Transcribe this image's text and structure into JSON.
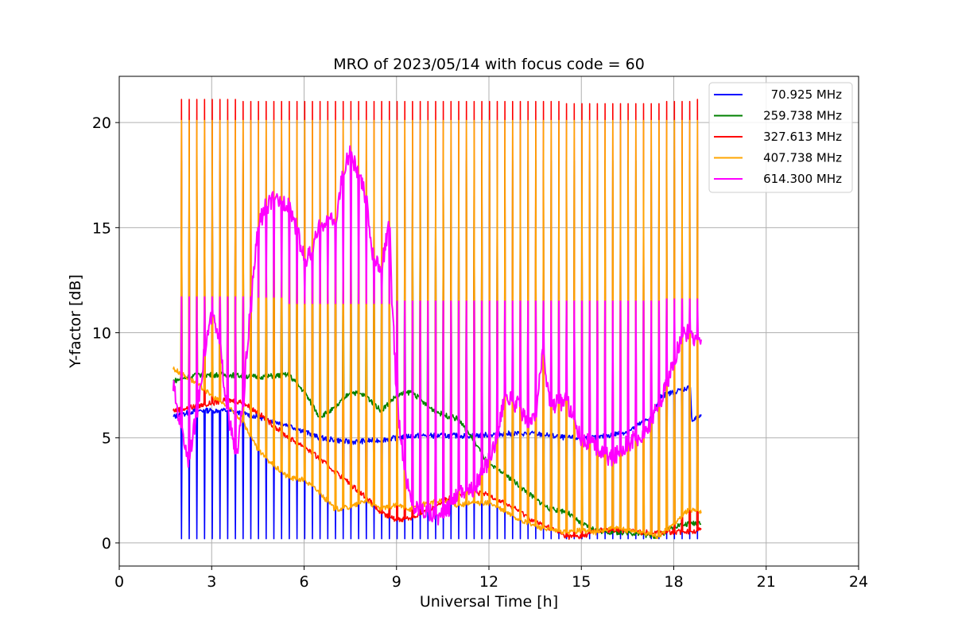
{
  "chart_data": {
    "type": "line",
    "title": "MRO of 2023/05/14 with focus code = 60",
    "xlabel": "Universal Time [h]",
    "ylabel": "Y-factor [dB]",
    "xlim": [
      0,
      24
    ],
    "ylim": [
      -1.1,
      22.2
    ],
    "x_ticks": [
      0,
      3,
      6,
      9,
      12,
      15,
      18,
      21,
      24
    ],
    "y_ticks": [
      0,
      5,
      10,
      15,
      20
    ],
    "grid": true,
    "legend": "top-right",
    "calibration_period_h": 0.25,
    "series": [
      {
        "name": " 70.925 MHz",
        "color": "#0000ff",
        "baseline": {
          "x": [
            1.75,
            2.5,
            3.5,
            4.5,
            5.5,
            6.5,
            7.5,
            8.5,
            9.5,
            10.5,
            11.5,
            12.5,
            13.5,
            14.5,
            15.5,
            16.5,
            17.3,
            17.6,
            18.5,
            18.6,
            18.9
          ],
          "y": [
            6.0,
            6.3,
            6.3,
            6.0,
            5.6,
            5.0,
            4.8,
            4.9,
            5.1,
            5.1,
            5.1,
            5.2,
            5.2,
            5.0,
            5.0,
            5.3,
            6.0,
            7.0,
            7.4,
            5.8,
            6.1
          ]
        },
        "spikes": {
          "start": 2.0,
          "end": 18.75,
          "values": [
            0.2
          ]
        }
      },
      {
        "name": "259.738 MHz",
        "color": "#008000",
        "baseline": {
          "x": [
            1.75,
            2.5,
            3.5,
            4.5,
            5.5,
            6.0,
            6.5,
            7.0,
            7.5,
            8.0,
            8.5,
            9.0,
            9.5,
            10.0,
            10.5,
            11.0,
            11.5,
            12.0,
            12.5,
            13.0,
            13.5,
            14.0,
            14.5,
            15.0,
            15.5,
            16.0,
            16.5,
            17.0,
            17.5,
            18.0,
            18.9
          ],
          "y": [
            7.7,
            8.0,
            8.0,
            7.9,
            8.0,
            7.2,
            6.0,
            6.4,
            7.2,
            7.0,
            6.3,
            7.0,
            7.2,
            6.5,
            6.1,
            5.9,
            4.9,
            3.7,
            3.3,
            2.7,
            2.1,
            1.6,
            1.5,
            0.9,
            0.6,
            0.5,
            0.5,
            0.4,
            0.3,
            0.8,
            1.0
          ]
        },
        "spikes": {
          "start": 2.0,
          "end": 18.75,
          "values": [
            18.2
          ]
        }
      },
      {
        "name": "327.613 MHz",
        "color": "#ff0000",
        "baseline": {
          "x": [
            1.75,
            2.5,
            3.5,
            4.0,
            4.5,
            5.0,
            5.5,
            6.0,
            6.5,
            7.0,
            7.5,
            8.0,
            8.5,
            9.0,
            9.5,
            10.0,
            10.5,
            11.0,
            11.5,
            12.0,
            12.5,
            13.0,
            13.5,
            14.0,
            14.5,
            15.0,
            15.5,
            16.0,
            16.5,
            17.0,
            17.5,
            18.0,
            18.9
          ],
          "y": [
            6.3,
            6.5,
            6.8,
            6.7,
            6.2,
            5.6,
            5.0,
            4.6,
            4.0,
            3.4,
            2.8,
            2.2,
            1.4,
            1.1,
            1.2,
            1.5,
            2.0,
            2.3,
            2.4,
            2.3,
            1.9,
            1.5,
            1.0,
            0.7,
            0.3,
            0.3,
            0.6,
            0.6,
            0.6,
            0.5,
            0.5,
            0.5,
            0.6
          ]
        },
        "spikes": {
          "start": 2.0,
          "end": 18.75,
          "values": [
            21.1,
            21.1,
            21.1,
            21.1,
            21.1,
            21.1,
            21.1,
            21.1,
            21.0,
            21.0,
            21.0,
            21.0,
            21.0,
            21.0,
            21.0,
            21.0,
            21.0,
            21.0,
            21.0,
            21.0,
            21.0,
            21.0,
            21.0,
            21.0,
            21.0,
            21.0,
            21.0,
            21.0,
            21.0,
            21.0,
            21.0,
            21.0,
            21.0,
            21.0,
            21.0,
            21.0,
            21.0,
            21.0,
            21.0,
            21.0,
            21.0,
            21.0,
            21.0,
            21.0,
            21.0,
            21.0,
            21.0,
            21.0,
            21.0,
            21.0,
            20.9,
            20.9,
            20.9,
            20.9,
            20.9,
            20.9,
            20.9,
            20.9,
            20.9,
            20.9,
            20.9,
            20.9,
            20.9,
            21.0,
            21.0,
            21.0,
            21.0,
            21.1
          ]
        }
      },
      {
        "name": "407.738 MHz",
        "color": "#ffa500",
        "baseline": {
          "x": [
            1.75,
            2.5,
            3.0,
            3.5,
            4.0,
            4.5,
            5.0,
            5.5,
            6.0,
            6.5,
            7.0,
            7.5,
            8.0,
            8.5,
            9.0,
            9.5,
            10.0,
            10.5,
            11.0,
            11.5,
            12.0,
            12.5,
            13.0,
            13.5,
            14.0,
            14.5,
            15.0,
            15.5,
            16.0,
            16.5,
            17.0,
            17.5,
            18.0,
            18.5,
            18.9
          ],
          "y": [
            8.3,
            7.6,
            7.0,
            6.5,
            5.8,
            4.4,
            3.7,
            3.1,
            3.0,
            2.4,
            1.6,
            1.7,
            2.0,
            1.6,
            1.8,
            1.6,
            1.9,
            2.0,
            1.8,
            1.9,
            1.9,
            1.5,
            1.1,
            0.8,
            0.6,
            0.5,
            0.6,
            0.5,
            0.7,
            0.6,
            0.5,
            0.3,
            0.9,
            1.6,
            1.5
          ]
        },
        "spikes": {
          "start": 2.0,
          "end": 18.75,
          "values": [
            20.1
          ]
        }
      },
      {
        "name": "614.300 MHz",
        "color": "#ff00ff",
        "baseline": {
          "x": [
            1.75,
            2.0,
            2.25,
            2.5,
            2.8,
            3.0,
            3.25,
            3.5,
            3.8,
            4.0,
            4.25,
            4.5,
            4.75,
            5.0,
            5.5,
            5.75,
            6.0,
            6.25,
            6.5,
            6.75,
            7.0,
            7.25,
            7.5,
            7.75,
            8.0,
            8.25,
            8.5,
            8.75,
            9.0,
            9.25,
            9.5,
            10.0,
            10.5,
            11.0,
            11.5,
            12.0,
            12.25,
            12.5,
            13.0,
            13.25,
            13.5,
            13.75,
            14.0,
            14.5,
            15.0,
            15.5,
            16.0,
            16.5,
            17.0,
            17.5,
            18.0,
            18.25,
            18.5,
            18.9
          ],
          "y": [
            7.5,
            5.5,
            4.0,
            6.0,
            9.5,
            10.8,
            9.5,
            6.5,
            3.8,
            6.5,
            11.0,
            15.0,
            16.0,
            16.3,
            16.2,
            15.0,
            13.5,
            13.8,
            15.0,
            15.5,
            15.2,
            17.5,
            18.6,
            17.5,
            16.5,
            13.5,
            13.0,
            15.0,
            7.0,
            3.5,
            1.8,
            1.5,
            1.2,
            2.5,
            2.5,
            4.0,
            5.0,
            7.0,
            6.5,
            5.5,
            6.0,
            9.0,
            6.5,
            6.8,
            5.0,
            4.5,
            4.0,
            4.8,
            5.0,
            6.5,
            8.5,
            9.8,
            10.0,
            9.5
          ]
        },
        "spikes": {
          "start": 2.0,
          "end": 18.75,
          "values": [
            11.7,
            11.7,
            11.7,
            11.7,
            11.7,
            11.7,
            11.7,
            11.7,
            11.7,
            11.7,
            11.7,
            11.7,
            11.7,
            11.7,
            11.4,
            11.4,
            11.4,
            11.4,
            11.4,
            11.4,
            11.4,
            11.4,
            11.4,
            11.4,
            11.4,
            11.4,
            11.4,
            11.4,
            11.5,
            11.5,
            11.5,
            11.5,
            11.5,
            11.5,
            11.5,
            11.5,
            11.5,
            11.5,
            11.5,
            11.5,
            11.5,
            11.5,
            11.5,
            11.5,
            11.5,
            11.5,
            11.5,
            11.5,
            11.5,
            11.5,
            11.5,
            11.5,
            11.5,
            11.5,
            11.5,
            11.5,
            11.5,
            11.5,
            11.5,
            11.5,
            11.5,
            11.5,
            11.5,
            11.6,
            11.6,
            11.6,
            11.6,
            11.6
          ]
        }
      }
    ]
  }
}
